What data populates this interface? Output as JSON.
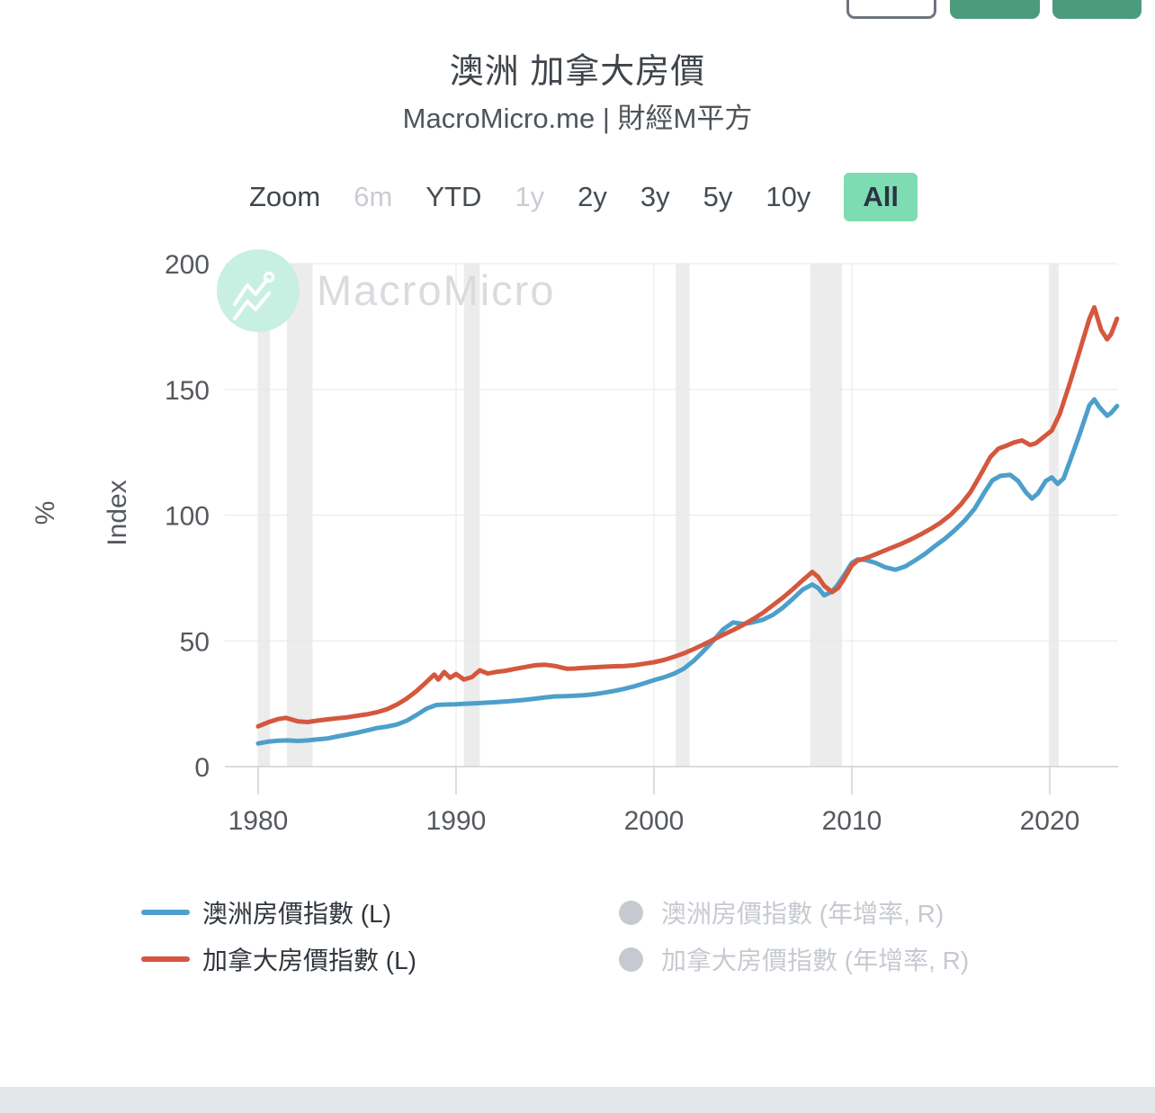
{
  "title": "澳洲 加拿大房價",
  "subtitle": "MacroMicro.me | 財經M平方",
  "header": {
    "buttons": [
      {
        "name": "outline-button",
        "style": "outline",
        "color": "#ffffff",
        "border_color": "#6e757d"
      },
      {
        "name": "green-button-1",
        "style": "solid",
        "color": "#4c9b7d"
      },
      {
        "name": "green-button-2",
        "style": "solid",
        "color": "#4c9b7d"
      }
    ]
  },
  "range_selector": {
    "label": "Zoom",
    "options": [
      {
        "label": "6m",
        "state": "disabled"
      },
      {
        "label": "YTD",
        "state": "normal"
      },
      {
        "label": "1y",
        "state": "disabled"
      },
      {
        "label": "2y",
        "state": "normal"
      },
      {
        "label": "3y",
        "state": "normal"
      },
      {
        "label": "5y",
        "state": "normal"
      },
      {
        "label": "10y",
        "state": "normal"
      },
      {
        "label": "All",
        "state": "selected"
      }
    ]
  },
  "chart_data": {
    "type": "line",
    "title": "澳洲 加拿大房價",
    "xlabel": "",
    "ylabel_left": "Index",
    "ylabel_right": "%",
    "watermark": "MacroMicro",
    "x_ticks": [
      1980,
      1990,
      2000,
      2010,
      2020
    ],
    "y_ticks": [
      0,
      50,
      100,
      150,
      200
    ],
    "xlim": [
      1980,
      2023.6
    ],
    "ylim": [
      0,
      200
    ],
    "grid": true,
    "legend_position": "bottom",
    "recession_bands": [
      [
        1980.0,
        1980.6
      ],
      [
        1981.45,
        1982.75
      ],
      [
        1990.4,
        1991.2
      ],
      [
        2001.1,
        2001.8
      ],
      [
        2007.9,
        2009.5
      ],
      [
        2019.95,
        2020.45
      ]
    ],
    "colors": {
      "band": "#ececec",
      "grid": "#e8e8e8",
      "grid_v": "#efefef",
      "axis": "#cfd2d4",
      "watermark_circle": "#c8f0e2"
    },
    "series": [
      {
        "name": "澳洲房價指數 (L)",
        "color": "#4d9fcb",
        "points": [
          [
            1980,
            9.2
          ],
          [
            1980.5,
            9.9
          ],
          [
            1981,
            10.3
          ],
          [
            1981.5,
            10.4
          ],
          [
            1982,
            10.2
          ],
          [
            1982.5,
            10.4
          ],
          [
            1983,
            10.8
          ],
          [
            1983.5,
            11.2
          ],
          [
            1984,
            12
          ],
          [
            1984.5,
            12.7
          ],
          [
            1985,
            13.5
          ],
          [
            1985.5,
            14.4
          ],
          [
            1986,
            15.3
          ],
          [
            1986.5,
            15.9
          ],
          [
            1987,
            16.7
          ],
          [
            1987.5,
            18.2
          ],
          [
            1988,
            20.5
          ],
          [
            1988.5,
            23
          ],
          [
            1989,
            24.5
          ],
          [
            1989.5,
            24.7
          ],
          [
            1990,
            24.8
          ],
          [
            1990.5,
            25
          ],
          [
            1991,
            25.2
          ],
          [
            1991.5,
            25.4
          ],
          [
            1992,
            25.6
          ],
          [
            1992.5,
            25.9
          ],
          [
            1993,
            26.2
          ],
          [
            1993.5,
            26.6
          ],
          [
            1994,
            27
          ],
          [
            1994.5,
            27.5
          ],
          [
            1995,
            27.9
          ],
          [
            1995.5,
            28
          ],
          [
            1996,
            28.2
          ],
          [
            1996.5,
            28.4
          ],
          [
            1997,
            28.8
          ],
          [
            1997.5,
            29.4
          ],
          [
            1998,
            30.1
          ],
          [
            1998.5,
            30.9
          ],
          [
            1999,
            31.9
          ],
          [
            1999.5,
            33.1
          ],
          [
            2000,
            34.4
          ],
          [
            2000.5,
            35.5
          ],
          [
            2001,
            36.9
          ],
          [
            2001.5,
            38.9
          ],
          [
            2002,
            42
          ],
          [
            2002.5,
            45.9
          ],
          [
            2003,
            50.1
          ],
          [
            2003.5,
            54.6
          ],
          [
            2004,
            57.3
          ],
          [
            2004.5,
            56.7
          ],
          [
            2005,
            57.4
          ],
          [
            2005.5,
            58.4
          ],
          [
            2006,
            60.3
          ],
          [
            2006.5,
            63.1
          ],
          [
            2007,
            66.6
          ],
          [
            2007.5,
            70.3
          ],
          [
            2008,
            72.4
          ],
          [
            2008.3,
            71
          ],
          [
            2008.6,
            68.1
          ],
          [
            2009,
            69.6
          ],
          [
            2009.3,
            72.5
          ],
          [
            2009.6,
            76
          ],
          [
            2010,
            81
          ],
          [
            2010.3,
            82.4
          ],
          [
            2010.7,
            82.2
          ],
          [
            2011.2,
            81
          ],
          [
            2011.7,
            79.2
          ],
          [
            2012.2,
            78.3
          ],
          [
            2012.7,
            79.6
          ],
          [
            2013.2,
            82
          ],
          [
            2013.7,
            84.6
          ],
          [
            2014.2,
            87.7
          ],
          [
            2014.7,
            90.6
          ],
          [
            2015.2,
            94
          ],
          [
            2015.7,
            97.8
          ],
          [
            2016.2,
            102.5
          ],
          [
            2016.7,
            109
          ],
          [
            2017.1,
            113.8
          ],
          [
            2017.5,
            115.6
          ],
          [
            2018,
            116
          ],
          [
            2018.4,
            113.6
          ],
          [
            2018.8,
            109
          ],
          [
            2019.1,
            106.6
          ],
          [
            2019.4,
            108.6
          ],
          [
            2019.8,
            113.6
          ],
          [
            2020.1,
            115
          ],
          [
            2020.4,
            112.4
          ],
          [
            2020.7,
            114.6
          ],
          [
            2021,
            121
          ],
          [
            2021.5,
            132
          ],
          [
            2022,
            143.6
          ],
          [
            2022.25,
            146
          ],
          [
            2022.5,
            143
          ],
          [
            2022.9,
            139.5
          ],
          [
            2023.1,
            140.6
          ],
          [
            2023.4,
            143.4
          ]
        ]
      },
      {
        "name": "加拿大房價指數 (L)",
        "color": "#d4573e",
        "points": [
          [
            1980,
            16
          ],
          [
            1980.5,
            17.6
          ],
          [
            1981,
            18.9
          ],
          [
            1981.4,
            19.4
          ],
          [
            1982,
            18
          ],
          [
            1982.5,
            17.7
          ],
          [
            1983,
            18.3
          ],
          [
            1983.5,
            18.8
          ],
          [
            1984,
            19.2
          ],
          [
            1984.5,
            19.6
          ],
          [
            1985,
            20.2
          ],
          [
            1985.5,
            20.8
          ],
          [
            1986,
            21.6
          ],
          [
            1986.5,
            22.8
          ],
          [
            1987,
            24.6
          ],
          [
            1987.5,
            27
          ],
          [
            1988,
            30
          ],
          [
            1988.5,
            33.6
          ],
          [
            1988.9,
            36.6
          ],
          [
            1989.1,
            34.6
          ],
          [
            1989.4,
            37.6
          ],
          [
            1989.7,
            35.3
          ],
          [
            1990,
            36.8
          ],
          [
            1990.4,
            34.6
          ],
          [
            1990.8,
            35.6
          ],
          [
            1991.2,
            38.3
          ],
          [
            1991.6,
            37
          ],
          [
            1992,
            37.6
          ],
          [
            1992.5,
            38.1
          ],
          [
            1993,
            38.9
          ],
          [
            1993.5,
            39.6
          ],
          [
            1994,
            40.3
          ],
          [
            1994.5,
            40.5
          ],
          [
            1995,
            40
          ],
          [
            1995.6,
            38.9
          ],
          [
            1996,
            39
          ],
          [
            1996.5,
            39.3
          ],
          [
            1997,
            39.5
          ],
          [
            1997.5,
            39.7
          ],
          [
            1998,
            39.9
          ],
          [
            1998.5,
            40
          ],
          [
            1999,
            40.3
          ],
          [
            1999.5,
            40.9
          ],
          [
            2000,
            41.5
          ],
          [
            2000.5,
            42.4
          ],
          [
            2001,
            43.6
          ],
          [
            2001.5,
            45
          ],
          [
            2002,
            46.7
          ],
          [
            2002.5,
            48.5
          ],
          [
            2003,
            50.5
          ],
          [
            2003.5,
            52.4
          ],
          [
            2004,
            54.3
          ],
          [
            2004.5,
            56.3
          ],
          [
            2005,
            58.6
          ],
          [
            2005.5,
            61.1
          ],
          [
            2006,
            64.1
          ],
          [
            2006.5,
            67.1
          ],
          [
            2007,
            70.4
          ],
          [
            2007.5,
            74
          ],
          [
            2008,
            77.4
          ],
          [
            2008.3,
            75.4
          ],
          [
            2008.6,
            71.9
          ],
          [
            2009,
            69.4
          ],
          [
            2009.3,
            71
          ],
          [
            2009.6,
            74.6
          ],
          [
            2010,
            80
          ],
          [
            2010.3,
            82
          ],
          [
            2010.6,
            82.6
          ],
          [
            2011,
            83.8
          ],
          [
            2011.5,
            85.4
          ],
          [
            2012,
            87
          ],
          [
            2012.5,
            88.6
          ],
          [
            2013,
            90.4
          ],
          [
            2013.5,
            92.4
          ],
          [
            2014,
            94.6
          ],
          [
            2014.5,
            97.1
          ],
          [
            2015,
            100.2
          ],
          [
            2015.5,
            104.2
          ],
          [
            2016,
            109.2
          ],
          [
            2016.5,
            116
          ],
          [
            2017,
            123.1
          ],
          [
            2017.4,
            126.4
          ],
          [
            2017.8,
            127.6
          ],
          [
            2018.2,
            128.9
          ],
          [
            2018.6,
            129.7
          ],
          [
            2019,
            127.9
          ],
          [
            2019.3,
            128.6
          ],
          [
            2019.7,
            131.1
          ],
          [
            2020.1,
            133.6
          ],
          [
            2020.5,
            140.1
          ],
          [
            2021,
            152.1
          ],
          [
            2021.5,
            165
          ],
          [
            2022,
            178
          ],
          [
            2022.25,
            182.6
          ],
          [
            2022.6,
            173.6
          ],
          [
            2022.9,
            169.9
          ],
          [
            2023.1,
            172
          ],
          [
            2023.4,
            178.1
          ]
        ]
      }
    ]
  },
  "legend": {
    "active": [
      {
        "label": "澳洲房價指數 (L)",
        "color": "#4d9fcb"
      },
      {
        "label": "加拿大房價指數 (L)",
        "color": "#d4573e"
      }
    ],
    "inactive": [
      {
        "label": "澳洲房價指數 (年增率, R)",
        "color": "#c6cad0"
      },
      {
        "label": "加拿大房價指數 (年增率, R)",
        "color": "#c6cad0"
      }
    ]
  },
  "footer": {
    "bar_color": "#e3e7ea"
  }
}
